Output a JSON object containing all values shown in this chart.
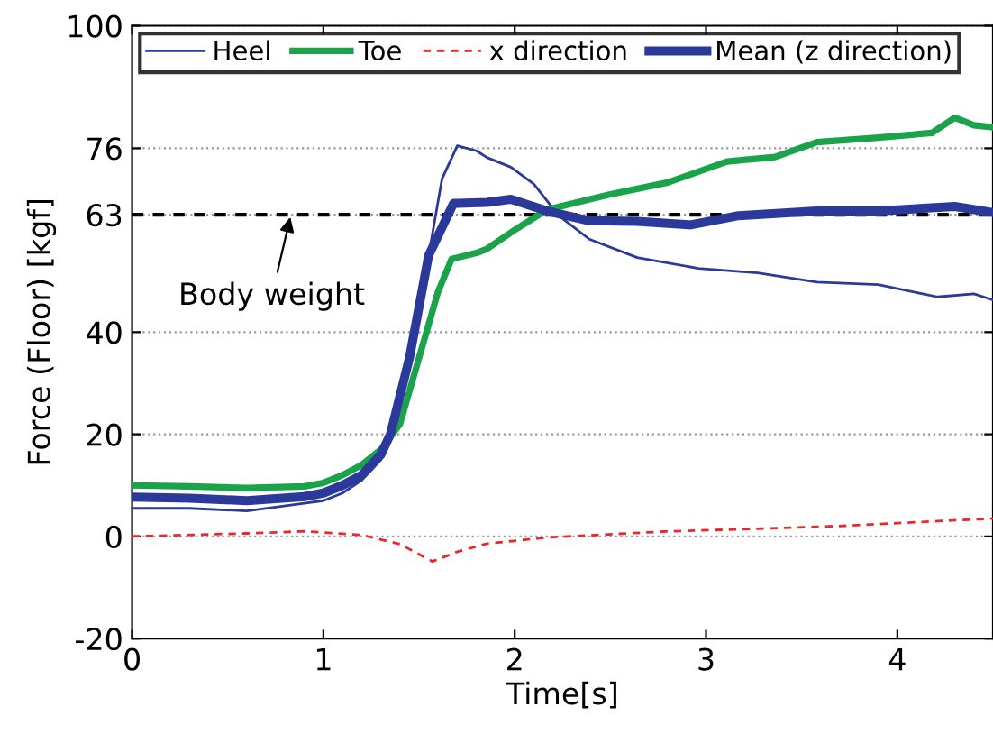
{
  "chart_data": {
    "type": "line",
    "xlabel": "Time[s]",
    "ylabel": "Force (Floor) [kgf]",
    "xlim": [
      0,
      4.5
    ],
    "xticks": [
      0,
      1,
      2,
      3,
      4
    ],
    "ylim": [
      -20,
      100
    ],
    "yticks": [
      -20,
      0,
      20,
      40,
      63,
      76,
      100
    ],
    "grid": "y",
    "legend": "top",
    "line_style": "solid",
    "series": [
      {
        "name": "Heel",
        "color": "#2b3a9a",
        "x": [
          0,
          0.3,
          0.6,
          0.9,
          1.0,
          1.1,
          1.2,
          1.3,
          1.35,
          1.45,
          1.55,
          1.62,
          1.7,
          1.8,
          1.855,
          1.98,
          2.1,
          2.23,
          2.39,
          2.64,
          2.96,
          3.27,
          3.58,
          3.9,
          4.21,
          4.4,
          4.5
        ],
        "values": [
          5.5,
          5.5,
          5,
          6.5,
          7,
          8.5,
          11,
          15,
          20,
          35,
          55,
          70,
          76.5,
          75.5,
          74.2,
          72.3,
          69,
          62.8,
          58.2,
          54.6,
          52.5,
          51.6,
          49.8,
          49.3,
          46.9,
          47.5,
          46.3
        ]
      },
      {
        "name": "Toe",
        "color": "#1aa34a",
        "x": [
          0,
          0.3,
          0.6,
          0.9,
          1.0,
          1.1,
          1.2,
          1.3,
          1.4,
          1.5,
          1.6,
          1.67,
          1.8,
          1.855,
          2.0,
          2.17,
          2.49,
          2.8,
          3.11,
          3.36,
          3.58,
          3.9,
          4.18,
          4.3,
          4.4,
          4.5
        ],
        "values": [
          10,
          9.8,
          9.5,
          9.8,
          10.5,
          12,
          14,
          17,
          22,
          35,
          48,
          54.3,
          55.5,
          56.3,
          60,
          64,
          66.9,
          69.3,
          73.4,
          74.3,
          77.2,
          78.1,
          79,
          82,
          80.5,
          80.1
        ]
      },
      {
        "name": "x direction",
        "color": "#e8282b",
        "line_style": "dashed",
        "x": [
          0,
          0.3,
          0.6,
          0.9,
          1.2,
          1.4,
          1.57,
          1.7,
          1.855,
          2.17,
          2.8,
          3.27,
          3.73,
          4.21,
          4.5
        ],
        "values": [
          0,
          0.3,
          0.6,
          1,
          0.3,
          -1.5,
          -4.9,
          -3,
          -1.4,
          -0.2,
          1,
          1.5,
          2.1,
          3,
          3.5
        ]
      },
      {
        "name": "Mean (z direction)",
        "color": "#2b3a9a",
        "x": [
          0,
          0.3,
          0.6,
          0.9,
          1.0,
          1.1,
          1.2,
          1.3,
          1.35,
          1.45,
          1.55,
          1.68,
          1.855,
          1.98,
          2.17,
          2.39,
          2.64,
          2.92,
          3.17,
          3.58,
          3.9,
          4.3,
          4.5
        ],
        "values": [
          7.7,
          7.5,
          7,
          7.8,
          8.5,
          10,
          12,
          16,
          20,
          35,
          55,
          65.2,
          65.4,
          66,
          63.7,
          61.8,
          61.7,
          61,
          62.8,
          63.7,
          63.7,
          64.6,
          63.4
        ]
      }
    ],
    "ref_lines": [
      {
        "axis": "y",
        "value": 63,
        "color": "#000000",
        "line_style": "dashed"
      }
    ],
    "annotations": [
      {
        "text": "Body weight",
        "x": 0.83,
        "y": 63
      }
    ]
  }
}
